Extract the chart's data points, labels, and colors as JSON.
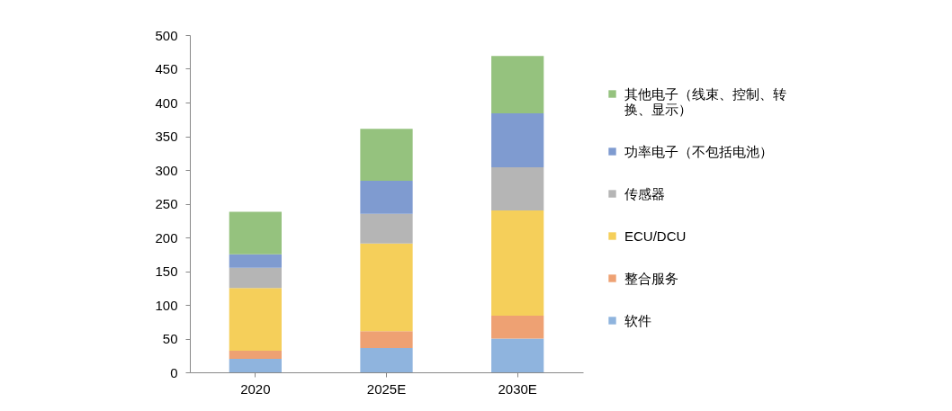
{
  "chart_data": {
    "type": "bar",
    "stacked": true,
    "categories": [
      "2020",
      "2025E",
      "2030E"
    ],
    "series": [
      {
        "name": "软件",
        "color": "#8fb4de",
        "values": [
          20,
          36,
          50
        ]
      },
      {
        "name": "整合服务",
        "color": "#eea173",
        "values": [
          12,
          25,
          34
        ]
      },
      {
        "name": "ECU/DCU",
        "color": "#f5cf5a",
        "values": [
          93,
          130,
          156
        ]
      },
      {
        "name": "传感器",
        "color": "#b5b5b5",
        "values": [
          30,
          44,
          64
        ]
      },
      {
        "name": "功率电子（不包括电池）",
        "color": "#7f9bd0",
        "values": [
          20,
          49,
          80
        ]
      },
      {
        "name": "其他电子（线束、控制、转换、显示）",
        "color": "#95c27e",
        "values": [
          63,
          77,
          85
        ]
      }
    ],
    "ylim": [
      0,
      500
    ],
    "yticks": [
      0,
      50,
      100,
      150,
      200,
      250,
      300,
      350,
      400,
      450,
      500
    ],
    "grid": false,
    "legend": "right"
  }
}
